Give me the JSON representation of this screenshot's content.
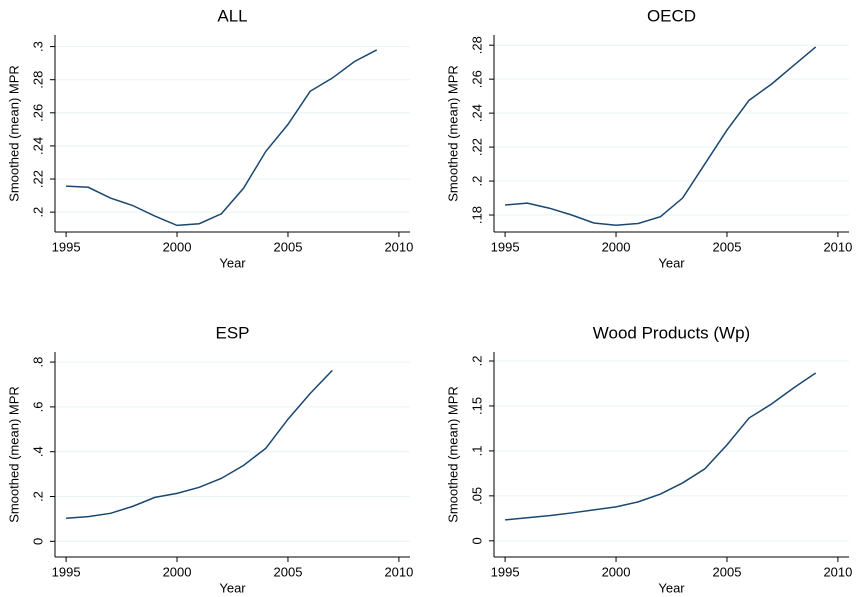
{
  "chart_data": [
    {
      "type": "line",
      "title": "ALL",
      "x_label": "Year",
      "y_label": "Smoothed (mean) MPR",
      "x": [
        1995,
        1996,
        1997,
        1998,
        1999,
        2000,
        2001,
        2002,
        2003,
        2004,
        2005,
        2006,
        2007,
        2008,
        2009
      ],
      "values": [
        0.2157,
        0.215,
        0.2085,
        0.204,
        0.1976,
        0.192,
        0.193,
        0.199,
        0.2145,
        0.2367,
        0.253,
        0.273,
        0.281,
        0.291,
        0.298
      ],
      "color": "#1a476f",
      "grid": true,
      "xlim": [
        1994.5,
        2010.5
      ],
      "xticks": [
        1995,
        2000,
        2005,
        2010
      ],
      "ylim": [
        0.188,
        0.307
      ],
      "yticks": [
        {
          "value": 0.2,
          "label": ".2"
        },
        {
          "value": 0.22,
          "label": ".22"
        },
        {
          "value": 0.24,
          "label": ".24"
        },
        {
          "value": 0.26,
          "label": ".26"
        },
        {
          "value": 0.28,
          "label": ".28"
        },
        {
          "value": 0.3,
          "label": ".3"
        }
      ]
    },
    {
      "type": "line",
      "title": "OECD",
      "x_label": "Year",
      "y_label": "Smoothed (mean) MPR",
      "x": [
        1995,
        1996,
        1997,
        1998,
        1999,
        2000,
        2001,
        2002,
        2003,
        2004,
        2005,
        2006,
        2007,
        2008,
        2009
      ],
      "values": [
        0.1859,
        0.187,
        0.184,
        0.18,
        0.1753,
        0.174,
        0.175,
        0.179,
        0.19,
        0.21,
        0.23,
        0.2476,
        0.257,
        0.268,
        0.279
      ],
      "color": "#1a476f",
      "grid": true,
      "xlim": [
        1994.5,
        2010.5
      ],
      "xticks": [
        1995,
        2000,
        2005,
        2010
      ],
      "ylim": [
        0.17,
        0.286
      ],
      "yticks": [
        {
          "value": 0.18,
          "label": ".18"
        },
        {
          "value": 0.2,
          "label": ".2"
        },
        {
          "value": 0.22,
          "label": ".22"
        },
        {
          "value": 0.24,
          "label": ".24"
        },
        {
          "value": 0.26,
          "label": ".26"
        },
        {
          "value": 0.28,
          "label": ".28"
        }
      ]
    },
    {
      "type": "line",
      "title": "ESP",
      "x_label": "Year",
      "y_label": "Smoothed (mean) MPR",
      "x": [
        1995,
        1996,
        1997,
        1998,
        1999,
        2000,
        2001,
        2002,
        2003,
        2004,
        2005,
        2006,
        2007
      ],
      "values": [
        0.103,
        0.11,
        0.125,
        0.156,
        0.196,
        0.214,
        0.241,
        0.281,
        0.339,
        0.415,
        0.545,
        0.66,
        0.763
      ],
      "color": "#1a476f",
      "grid": true,
      "xlim": [
        1994.5,
        2010.5
      ],
      "xticks": [
        1995,
        2000,
        2005,
        2010
      ],
      "ylim": [
        -0.07,
        0.845
      ],
      "yticks": [
        0,
        {
          "value": 0.2,
          "label": ".2"
        },
        {
          "value": 0.4,
          "label": ".4"
        },
        {
          "value": 0.6,
          "label": ".6"
        },
        {
          "value": 0.8,
          "label": ".8"
        }
      ]
    },
    {
      "type": "line",
      "title": "Wood Products (Wp)",
      "x_label": "Year",
      "y_label": "Smoothed (mean) MPR",
      "x": [
        1995,
        1996,
        1997,
        1998,
        1999,
        2000,
        2001,
        2002,
        2003,
        2004,
        2005,
        2006,
        2007,
        2008,
        2009
      ],
      "values": [
        0.0233,
        0.0256,
        0.028,
        0.031,
        0.0344,
        0.0378,
        0.0433,
        0.052,
        0.0644,
        0.08,
        0.1067,
        0.1367,
        0.152,
        0.17,
        0.1867
      ],
      "color": "#1a476f",
      "grid": true,
      "xlim": [
        1994.5,
        2010.5
      ],
      "xticks": [
        1995,
        2000,
        2005,
        2010
      ],
      "ylim": [
        -0.018,
        0.21
      ],
      "yticks": [
        0,
        {
          "value": 0.05,
          "label": ".05"
        },
        {
          "value": 0.1,
          "label": ".1"
        },
        {
          "value": 0.15,
          "label": ".15"
        },
        {
          "value": 0.2,
          "label": ".2"
        }
      ]
    }
  ]
}
